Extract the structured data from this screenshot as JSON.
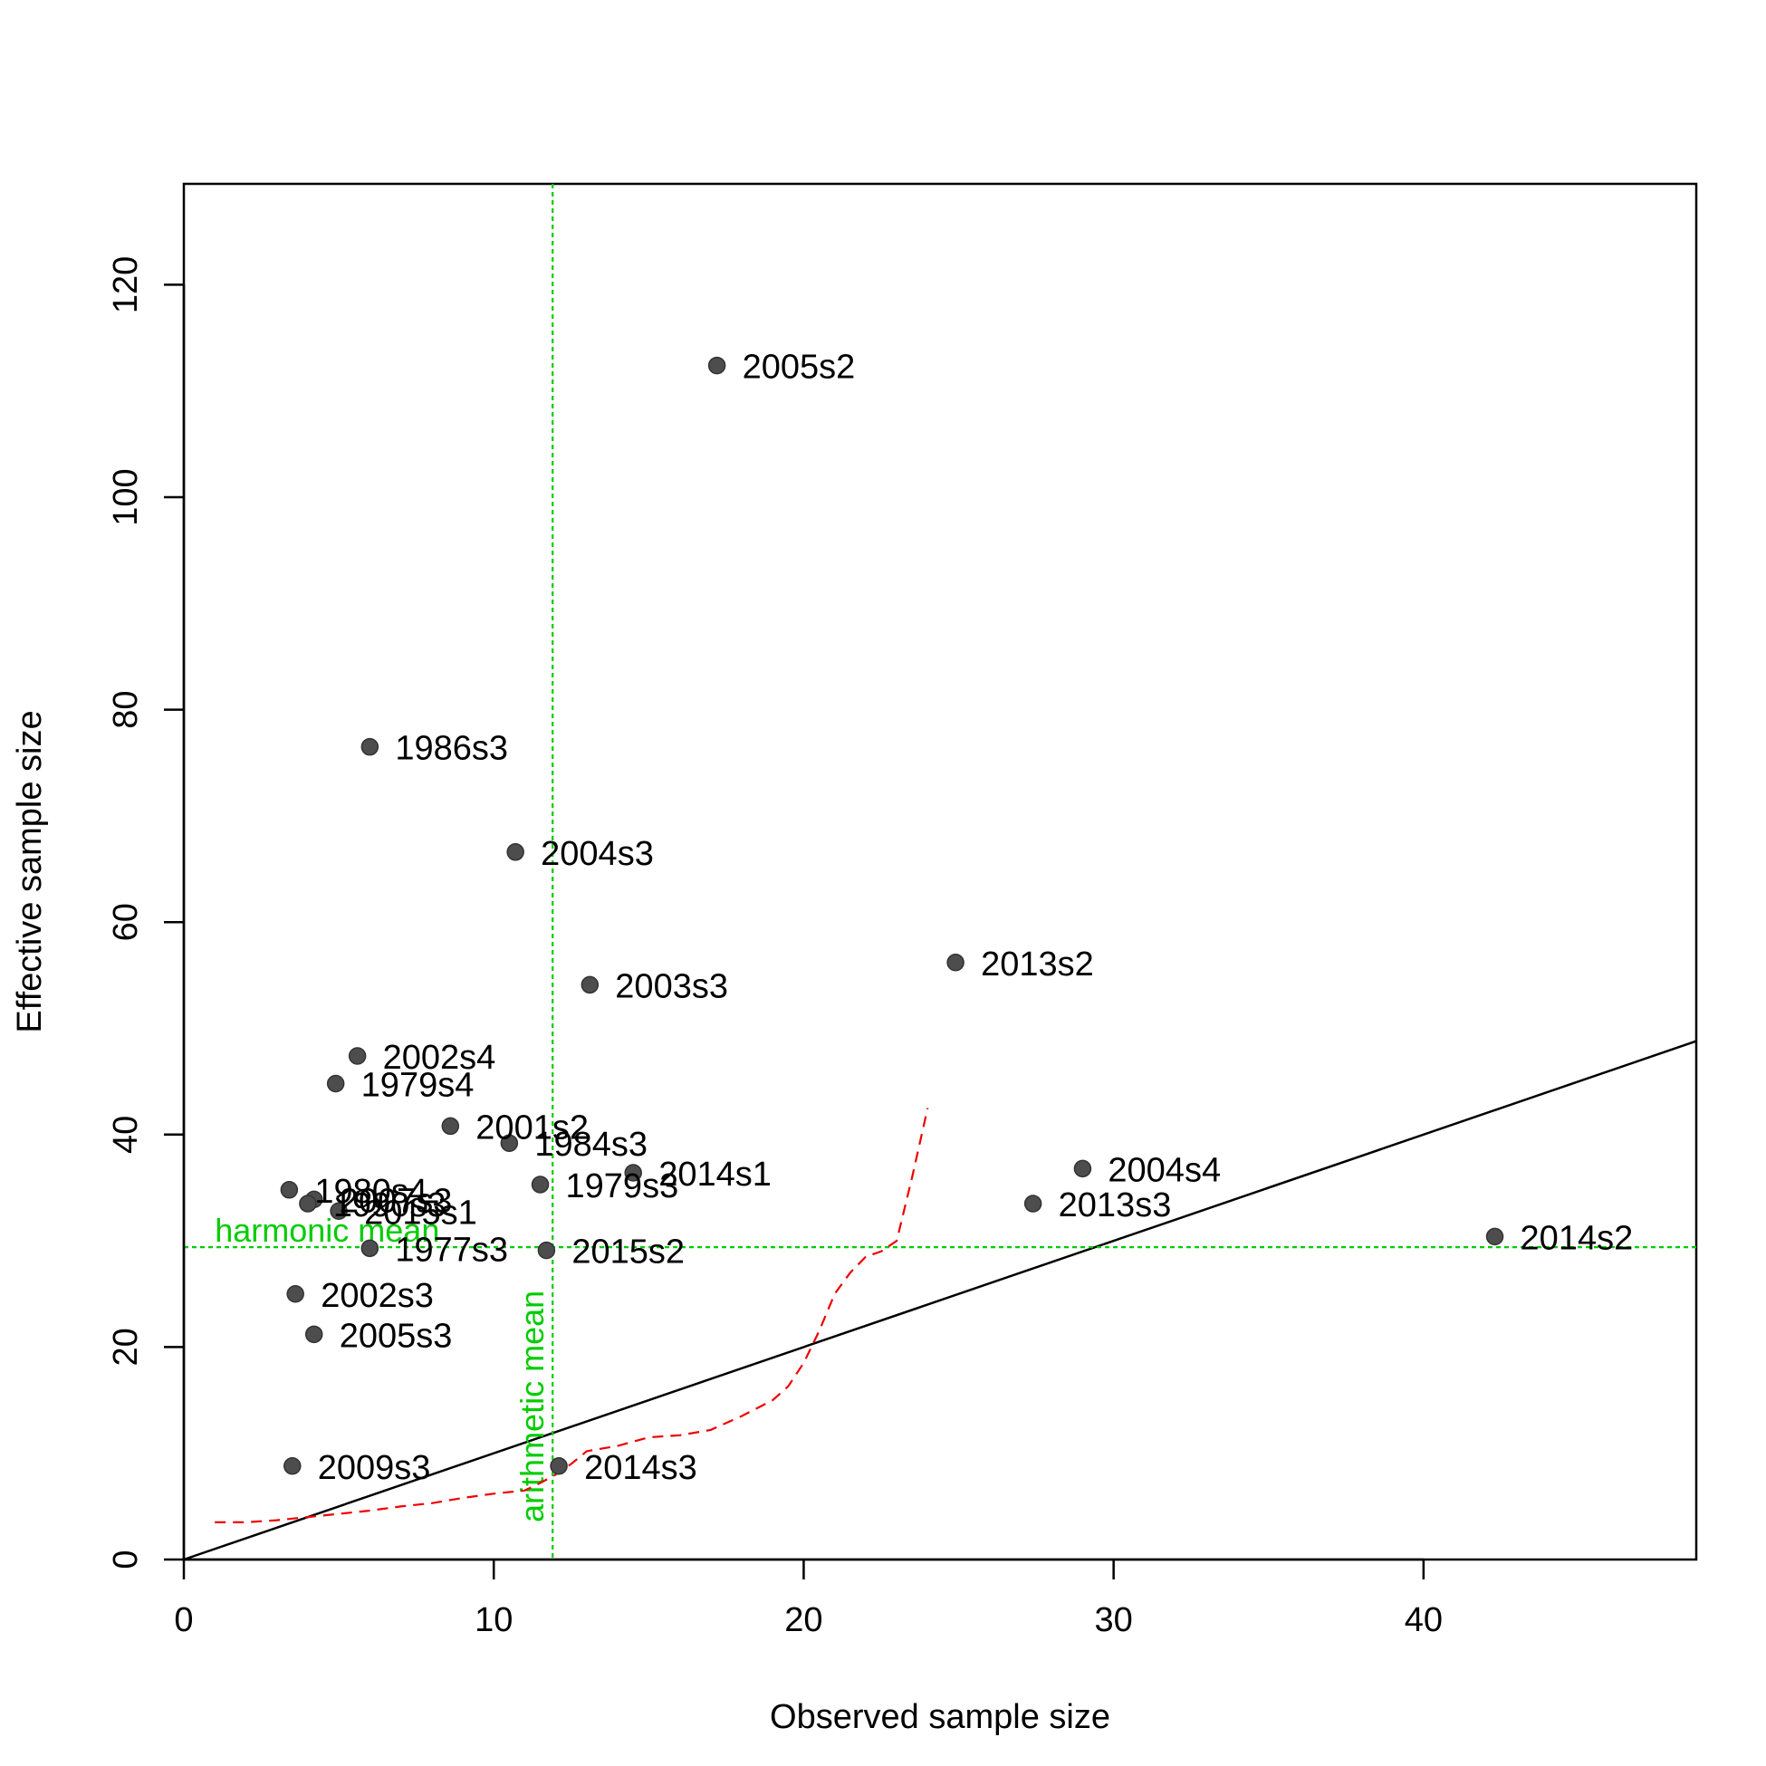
{
  "chart_data": {
    "type": "scatter",
    "title": "",
    "xlabel": "Observed sample size",
    "ylabel": "Effective sample size",
    "xlim": [
      0,
      48.8
    ],
    "ylim": [
      0,
      129.5
    ],
    "x_ticks": [
      0,
      10,
      20,
      30,
      40
    ],
    "y_ticks": [
      0,
      20,
      40,
      60,
      80,
      100,
      120
    ],
    "grid": false,
    "points": [
      {
        "label": "2005s2",
        "x": 17.2,
        "y": 112.4
      },
      {
        "label": "1986s3",
        "x": 6.0,
        "y": 76.5
      },
      {
        "label": "2004s3",
        "x": 10.7,
        "y": 66.6
      },
      {
        "label": "2013s2",
        "x": 24.9,
        "y": 56.2
      },
      {
        "label": "2003s3",
        "x": 13.1,
        "y": 54.1
      },
      {
        "label": "2002s4",
        "x": 5.6,
        "y": 47.4
      },
      {
        "label": "1979s4",
        "x": 4.9,
        "y": 44.8
      },
      {
        "label": "2001s2",
        "x": 8.6,
        "y": 40.8
      },
      {
        "label": "1984s3",
        "x": 10.5,
        "y": 39.2
      },
      {
        "label": "2004s4",
        "x": 29.0,
        "y": 36.8
      },
      {
        "label": "2014s1",
        "x": 14.5,
        "y": 36.4
      },
      {
        "label": "1979s3",
        "x": 11.5,
        "y": 35.3
      },
      {
        "label": "1980s4",
        "x": 3.4,
        "y": 34.8
      },
      {
        "label": "2007s3",
        "x": 4.2,
        "y": 33.9
      },
      {
        "label": "1990s3",
        "x": 4.0,
        "y": 33.5
      },
      {
        "label": "2013s3",
        "x": 27.4,
        "y": 33.5
      },
      {
        "label": "2015s1",
        "x": 5.0,
        "y": 32.8
      },
      {
        "label": "2014s2",
        "x": 42.3,
        "y": 30.4
      },
      {
        "label": "1977s3",
        "x": 6.0,
        "y": 29.3
      },
      {
        "label": "2015s2",
        "x": 11.7,
        "y": 29.1
      },
      {
        "label": "2002s3",
        "x": 3.6,
        "y": 25.0
      },
      {
        "label": "2005s3",
        "x": 4.2,
        "y": 21.2
      },
      {
        "label": "2009s3",
        "x": 3.5,
        "y": 8.8
      },
      {
        "label": "2014s3",
        "x": 12.1,
        "y": 8.8
      }
    ],
    "reference_lines": [
      {
        "kind": "identity",
        "label": "",
        "color": "#000000",
        "style": "solid"
      },
      {
        "kind": "vertical",
        "label": "arithmetic mean",
        "value": 11.9,
        "color": "#00cc00",
        "style": "dotted"
      },
      {
        "kind": "horizontal",
        "label": "harmonic mean",
        "value": 29.4,
        "color": "#00cc00",
        "style": "dotted"
      }
    ],
    "smoother": {
      "color": "#ee0000",
      "style": "dashed",
      "x": [
        1.0,
        2.0,
        3.0,
        4.0,
        5.0,
        6.0,
        7.0,
        8.0,
        9.0,
        10.0,
        11.0,
        11.5,
        12.0,
        12.5,
        13.0,
        14.0,
        15.0,
        16.0,
        17.0,
        18.0,
        19.0,
        19.5,
        20.0,
        20.5,
        21.0,
        21.5,
        22.0,
        22.5,
        23.0,
        23.5,
        24.0
      ],
      "y": [
        3.5,
        3.5,
        3.7,
        4.0,
        4.3,
        4.6,
        5.0,
        5.3,
        5.8,
        6.2,
        6.5,
        7.2,
        8.0,
        9.0,
        10.2,
        10.7,
        11.5,
        11.7,
        12.2,
        13.5,
        15.0,
        16.3,
        18.5,
        21.5,
        25.0,
        27.0,
        28.5,
        29.0,
        30.0,
        36.0,
        42.5
      ]
    },
    "point_color": "#4d4d4d"
  }
}
